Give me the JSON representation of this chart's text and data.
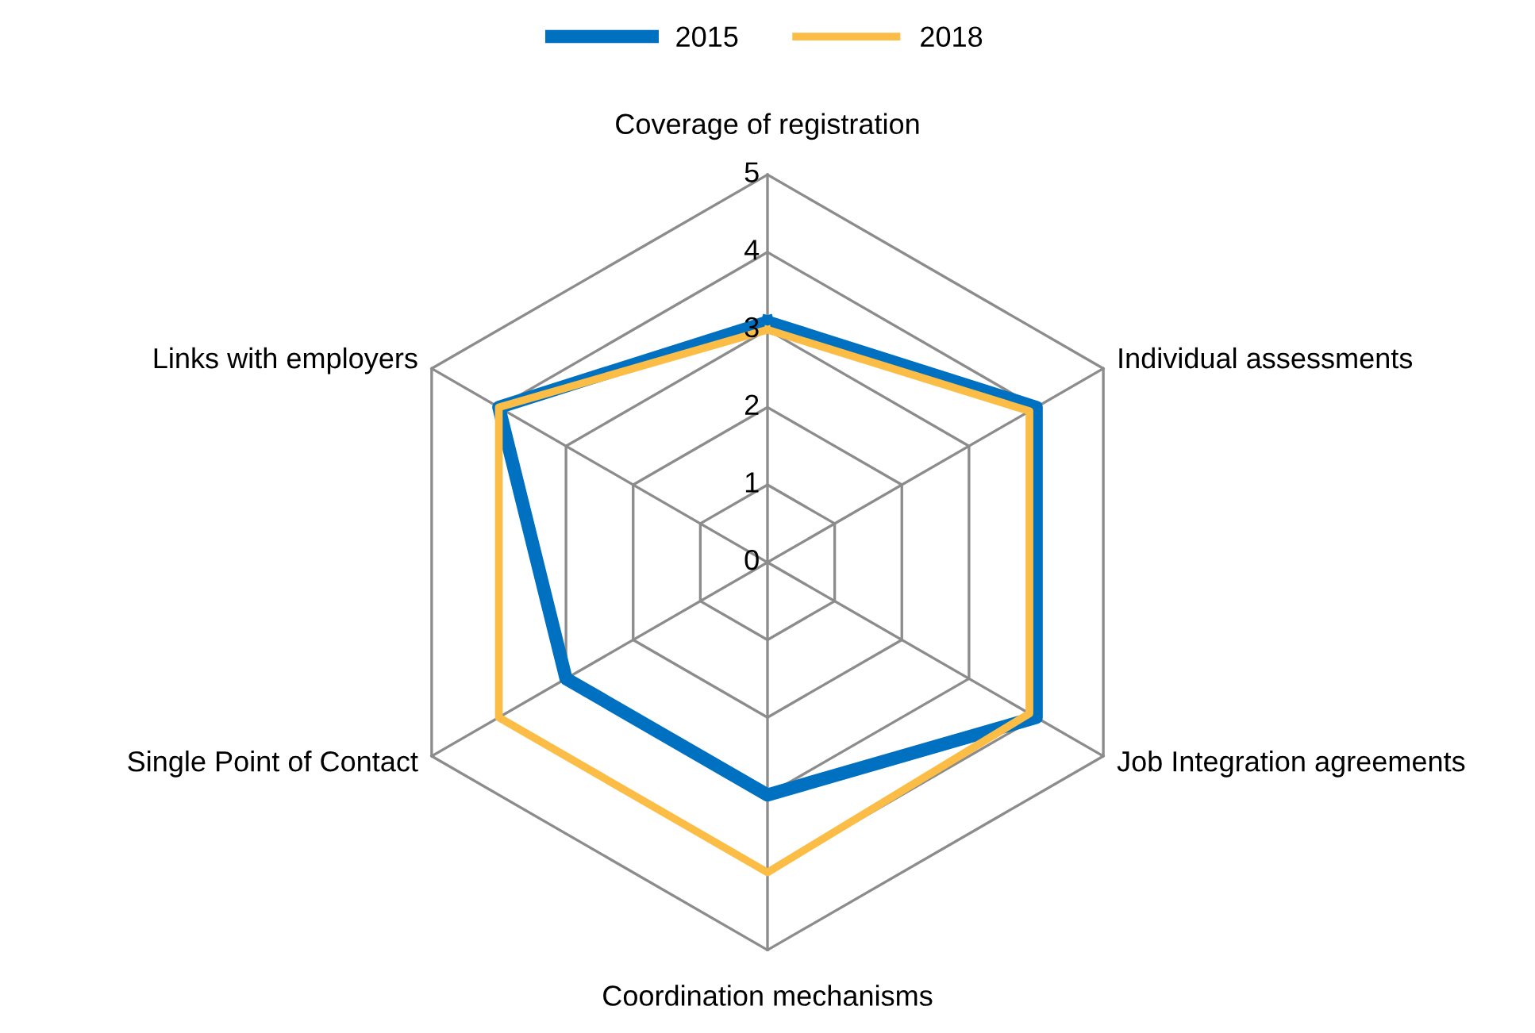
{
  "chart_data": {
    "type": "radar",
    "categories": [
      "Coverage of registration",
      "Individual assessments",
      "Job Integration agreements",
      "Coordination mechanisms",
      "Single Point of Contact",
      "Links with employers"
    ],
    "series": [
      {
        "name": "2015",
        "color": "#0070c0",
        "values": [
          3.1,
          4.0,
          4.0,
          3.0,
          3.0,
          4.0
        ]
      },
      {
        "name": "2018",
        "color": "#fbbd45",
        "values": [
          3.0,
          3.9,
          3.9,
          4.0,
          4.0,
          4.0
        ]
      }
    ],
    "ylim": [
      0,
      5
    ],
    "yticks": [
      0,
      1,
      2,
      3,
      4,
      5
    ],
    "grid": true,
    "legend": "top"
  }
}
